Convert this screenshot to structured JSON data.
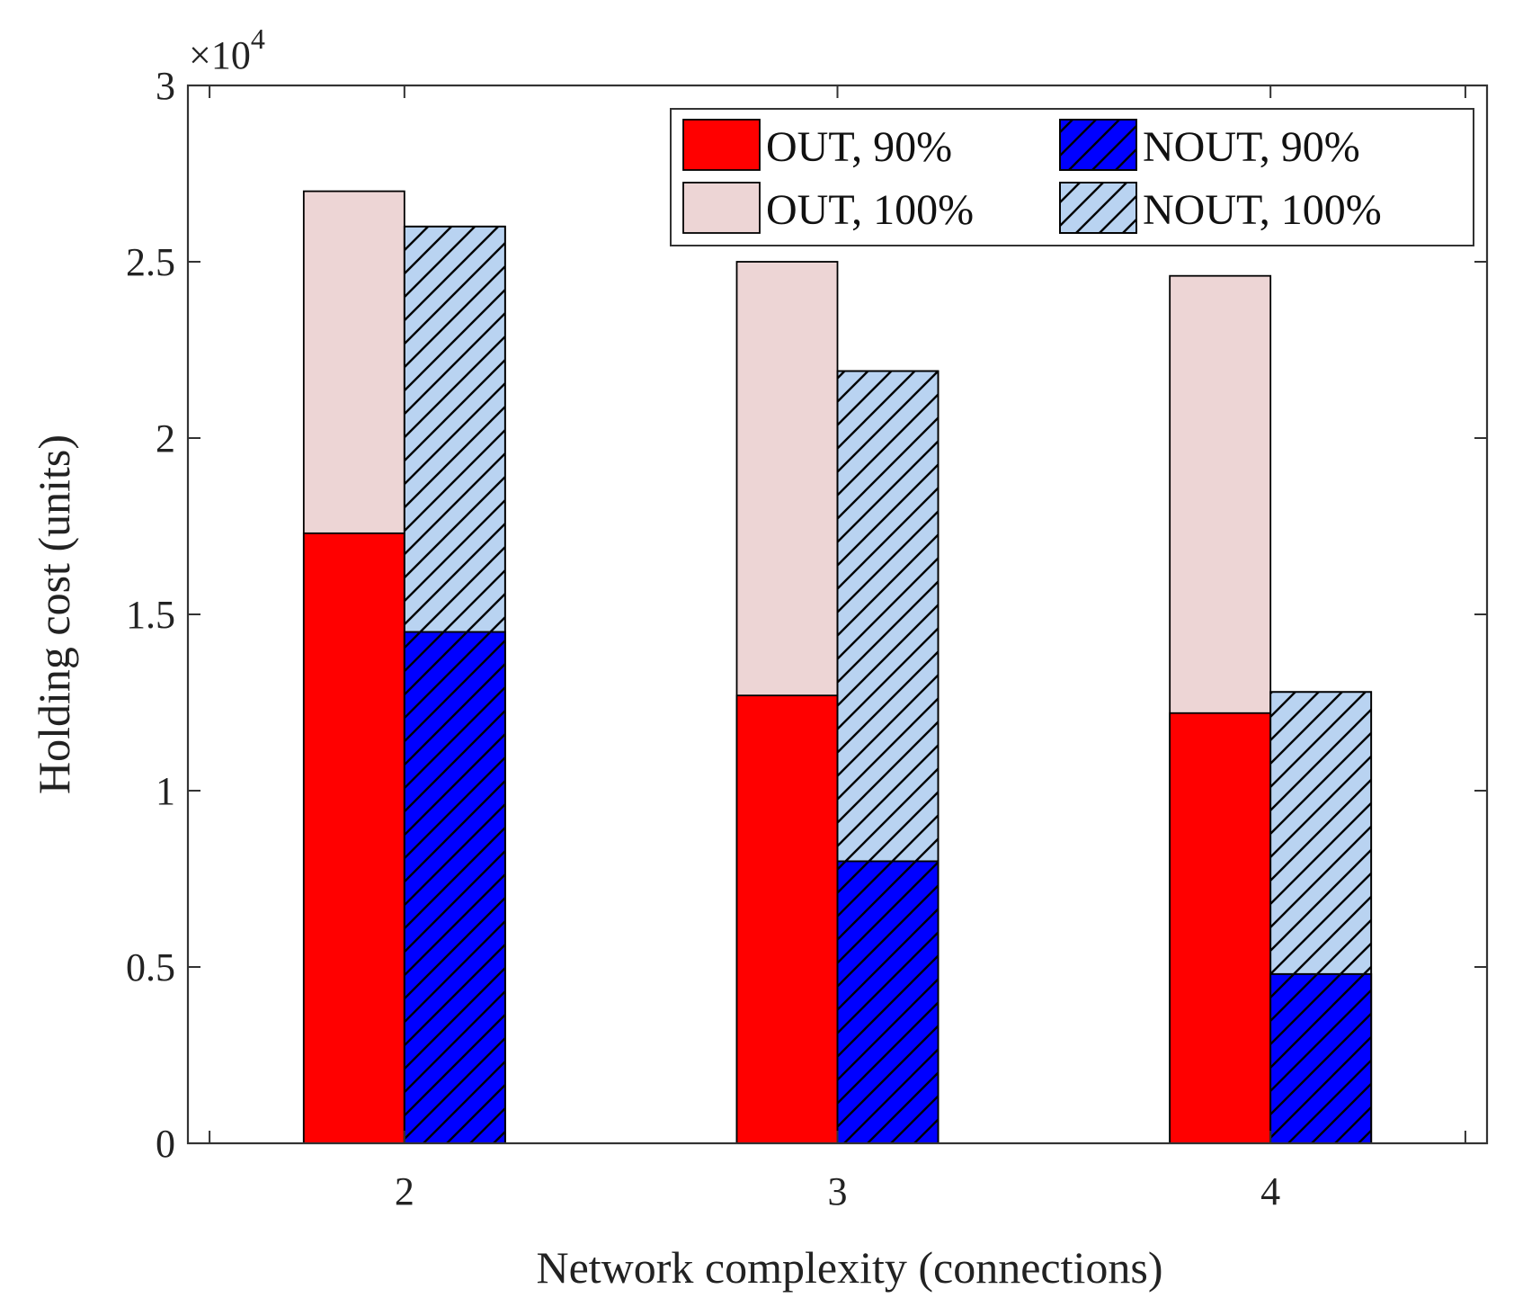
{
  "chart_data": {
    "type": "bar",
    "stacked": true,
    "grouped": true,
    "xlabel": "Network complexity (connections)",
    "ylabel": "Holding cost (units)",
    "categories": [
      "2",
      "3",
      "4"
    ],
    "xlim": [
      1.5,
      4.5
    ],
    "ylim": [
      0,
      30000
    ],
    "yticks": [
      0,
      0.5,
      1,
      1.5,
      2,
      2.5,
      3
    ],
    "y_multiplier": "×10",
    "y_multiplier_exponent": "4",
    "grid": false,
    "legend_position": "top-right",
    "series": [
      {
        "name": "OUT, 90%",
        "group": "OUT",
        "values": [
          17300,
          12700,
          12200
        ],
        "color": "#ff0000",
        "hatch": false
      },
      {
        "name": "NOUT, 90%",
        "group": "NOUT",
        "values": [
          14500,
          8000,
          4800
        ],
        "color": "#0000ff",
        "hatch": true
      },
      {
        "name": "OUT, 100%",
        "group": "OUT",
        "values": [
          27000,
          25000,
          24600
        ],
        "color": "#edd5d5",
        "hatch": false
      },
      {
        "name": "NOUT, 100%",
        "group": "NOUT",
        "values": [
          26000,
          21900,
          12800
        ],
        "color": "#b9d3f1",
        "hatch": true
      }
    ]
  }
}
